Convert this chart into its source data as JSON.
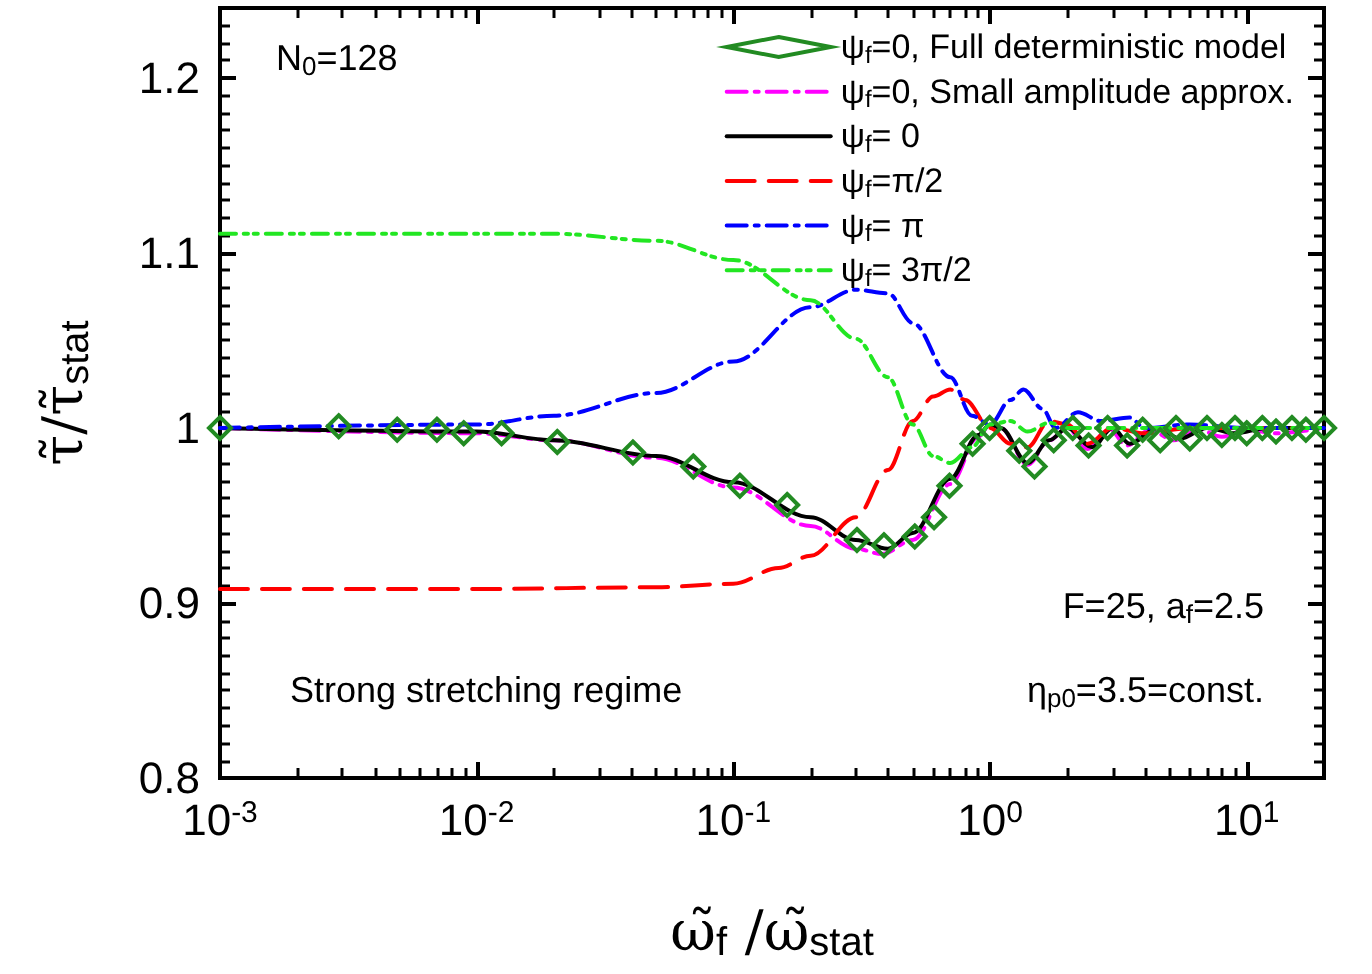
{
  "chart_data": {
    "type": "line",
    "xlabel": "ω̃$_{f}$ /ω̃$_{stat}$",
    "ylabel": "τ̃/τ̃$_{stat}$",
    "log": "x",
    "xlim": [
      0.001,
      20
    ],
    "ylim": [
      0.8,
      1.24
    ],
    "xticks": [
      {
        "value": 0.001,
        "label": "10$^{-3}$"
      },
      {
        "value": 0.01,
        "label": "10$^{-2}$"
      },
      {
        "value": 0.1,
        "label": "10$^{-1}$"
      },
      {
        "value": 1,
        "label": "10$^{0}$"
      },
      {
        "value": 10,
        "label": "10$^{1}$"
      }
    ],
    "yticks": [
      0.8,
      0.9,
      1.0,
      1.1,
      1.2
    ],
    "grid": false,
    "legend": "top right",
    "marker": "none",
    "annotations": [
      "N$_{0}$=128",
      "F=25, a$_{f}$=2.5",
      "η$_{p0}$=3.5=const.",
      "Strong stretching regime"
    ],
    "series": [
      {
        "name": "ψ$_{f}$=0, Full deterministic model",
        "type": "scatter",
        "marker": "diamond",
        "color": "#228b22",
        "x": [
          0.001,
          0.0029,
          0.0049,
          0.007,
          0.0089,
          0.0125,
          0.0206,
          0.0406,
          0.0698,
          0.106,
          0.162,
          0.303,
          0.386,
          0.509,
          0.605,
          0.695,
          0.855,
          0.996,
          1.3,
          1.49,
          1.77,
          2.1,
          2.42,
          2.87,
          3.42,
          3.93,
          4.6,
          5.3,
          6,
          7,
          8,
          9,
          10,
          11.5,
          13,
          15,
          17,
          20
        ],
        "values": [
          1.0,
          1.001,
          0.999,
          0.999,
          0.997,
          0.997,
          0.992,
          0.986,
          0.978,
          0.967,
          0.956,
          0.936,
          0.933,
          0.938,
          0.949,
          0.967,
          0.991,
          1.0,
          0.987,
          0.978,
          0.993,
          1.0,
          0.99,
          1.0,
          0.99,
          0.999,
          0.993,
          1.0,
          0.994,
          1.0,
          0.996,
          1.0,
          0.997,
          1.0,
          0.998,
          1.0,
          0.999,
          1.0
        ]
      },
      {
        "name": "ψ$_{f}$=0, Small amplitude approx.",
        "color": "#ff00ff",
        "line_style": "dashdot",
        "x": [
          0.001,
          0.01,
          0.02,
          0.05,
          0.1,
          0.2,
          0.3,
          0.38,
          0.5,
          0.7,
          0.9,
          1.0,
          1.1,
          1.4,
          1.7,
          2.0,
          2.4,
          2.9,
          3.4,
          4.2,
          5.2,
          6.5,
          8,
          10,
          13,
          20
        ],
        "values": [
          1.0,
          0.997,
          0.993,
          0.983,
          0.966,
          0.944,
          0.931,
          0.928,
          0.936,
          0.968,
          0.995,
          1.002,
          1.0,
          0.979,
          0.993,
          1.0,
          0.988,
          1.0,
          0.99,
          0.999,
          0.993,
          0.999,
          0.995,
          0.999,
          0.997,
          1.0
        ]
      },
      {
        "name": "ψ$_{f}$= 0",
        "color": "#000000",
        "line_style": "solid",
        "x": [
          0.001,
          0.01,
          0.02,
          0.05,
          0.1,
          0.2,
          0.3,
          0.4,
          0.5,
          0.7,
          0.9,
          1.0,
          1.1,
          1.4,
          1.7,
          2.0,
          2.5,
          3,
          3.5,
          4.5,
          5.5,
          7,
          9,
          12,
          20
        ],
        "values": [
          1.0,
          0.998,
          0.993,
          0.984,
          0.969,
          0.949,
          0.936,
          0.931,
          0.94,
          0.971,
          0.996,
          1.002,
          1.0,
          0.98,
          0.993,
          1.0,
          0.989,
          1.0,
          0.991,
          1.0,
          0.994,
          1.0,
          0.997,
          1.0,
          1.0
        ]
      },
      {
        "name": "ψ$_{f}$=π/2",
        "color": "#ff0000",
        "line_style": "dashed",
        "x": [
          0.001,
          0.01,
          0.05,
          0.1,
          0.15,
          0.2,
          0.3,
          0.4,
          0.5,
          0.6,
          0.7,
          0.8,
          1.0,
          1.2,
          1.4,
          1.7,
          2.0,
          2.4,
          3,
          4,
          6,
          10,
          20
        ],
        "values": [
          0.908,
          0.908,
          0.909,
          0.911,
          0.92,
          0.927,
          0.949,
          0.976,
          1.004,
          1.018,
          1.022,
          1.016,
          1.0,
          0.991,
          0.989,
          1.004,
          1.002,
          0.991,
          1.0,
          0.997,
          1.0,
          1.0,
          1.0
        ]
      },
      {
        "name": "ψ$_{f}$= π",
        "color": "#0000ff",
        "line_style": "dashdot",
        "x": [
          0.001,
          0.01,
          0.02,
          0.05,
          0.1,
          0.2,
          0.3,
          0.4,
          0.5,
          0.7,
          0.85,
          1.0,
          1.2,
          1.35,
          1.6,
          1.8,
          2.2,
          2.7,
          3.5,
          4,
          6,
          10,
          20
        ],
        "values": [
          1.0,
          1.002,
          1.007,
          1.02,
          1.038,
          1.069,
          1.079,
          1.077,
          1.06,
          1.029,
          1.007,
          1.002,
          1.016,
          1.022,
          1.011,
          1.0,
          1.009,
          1.004,
          1.006,
          1.0,
          1.002,
          1.0,
          1.0
        ]
      },
      {
        "name": "ψ$_{f}$= 3π/2",
        "color": "#22e622",
        "line_style": "dashdotdot",
        "x": [
          0.001,
          0.01,
          0.02,
          0.05,
          0.1,
          0.2,
          0.3,
          0.4,
          0.5,
          0.6,
          0.7,
          0.85,
          1.0,
          1.2,
          1.4,
          1.7,
          2.0,
          3,
          5,
          10,
          20
        ],
        "values": [
          1.111,
          1.111,
          1.111,
          1.107,
          1.096,
          1.073,
          1.051,
          1.029,
          1.002,
          0.984,
          0.98,
          0.989,
          1.002,
          1.004,
          0.998,
          1.003,
          1.0,
          1.0,
          1.0,
          1.0,
          1.0
        ]
      }
    ]
  }
}
